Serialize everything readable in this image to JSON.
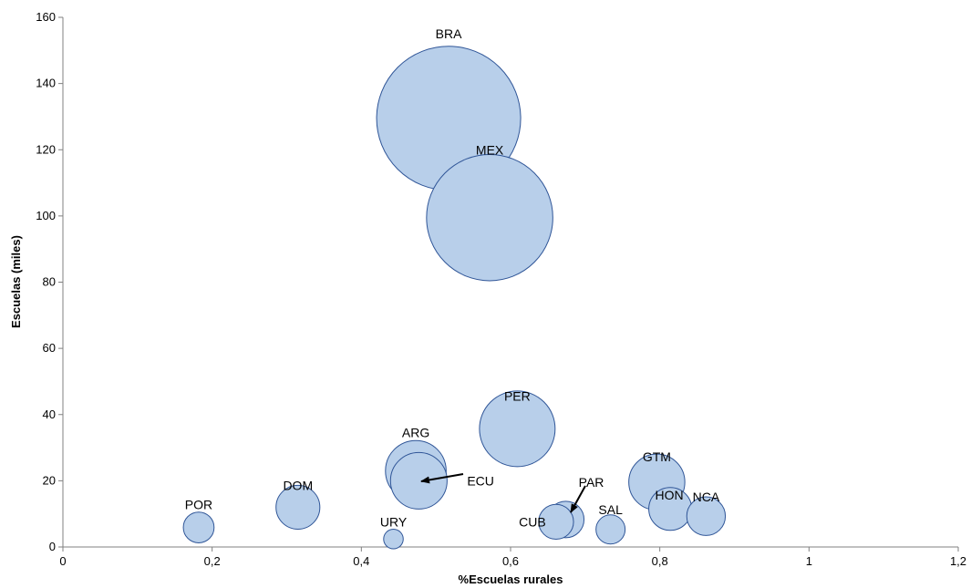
{
  "chart_data": {
    "type": "scatter",
    "title": "",
    "xlabel": "%Escuelas rurales",
    "ylabel": "Escuelas (miles)",
    "xlim": [
      0,
      1.2
    ],
    "ylim": [
      0,
      160
    ],
    "xticks": [
      0,
      0.2,
      0.4,
      0.6,
      0.8,
      1,
      1.2
    ],
    "xtick_labels": [
      "0",
      "0,2",
      "0,4",
      "0,6",
      "0,8",
      "1",
      "1,2"
    ],
    "yticks": [
      0,
      20,
      40,
      60,
      80,
      100,
      120,
      140,
      160
    ],
    "ytick_labels": [
      "0",
      "20",
      "40",
      "60",
      "80",
      "100",
      "120",
      "140",
      "160"
    ],
    "grid": false,
    "legend": "none",
    "colors": {
      "fill": "#b8cfea",
      "stroke": "#2f5597"
    },
    "points": [
      {
        "label": "BRA",
        "x": 0.517,
        "y": 129.5,
        "size": 129.5
      },
      {
        "label": "MEX",
        "x": 0.572,
        "y": 99.5,
        "size": 99.5
      },
      {
        "label": "PER",
        "x": 0.609,
        "y": 35.7,
        "size": 35.7
      },
      {
        "label": "ARG",
        "x": 0.473,
        "y": 23,
        "size": 23
      },
      {
        "label": "ECU",
        "x": 0.477,
        "y": 20,
        "size": 20
      },
      {
        "label": "GTM",
        "x": 0.796,
        "y": 19.6,
        "size": 19.6
      },
      {
        "label": "DOM",
        "x": 0.315,
        "y": 12,
        "size": 12
      },
      {
        "label": "HON",
        "x": 0.814,
        "y": 11.5,
        "size": 11.5
      },
      {
        "label": "NCA",
        "x": 0.862,
        "y": 9.3,
        "size": 9.3
      },
      {
        "label": "PAR",
        "x": 0.674,
        "y": 8.3,
        "size": 8.3
      },
      {
        "label": "CUB",
        "x": 0.661,
        "y": 7.6,
        "size": 7.6
      },
      {
        "label": "POR",
        "x": 0.182,
        "y": 5.9,
        "size": 5.9
      },
      {
        "label": "SAL",
        "x": 0.734,
        "y": 5.3,
        "size": 5.3
      },
      {
        "label": "URY",
        "x": 0.443,
        "y": 2.4,
        "size": 2.4
      }
    ]
  }
}
